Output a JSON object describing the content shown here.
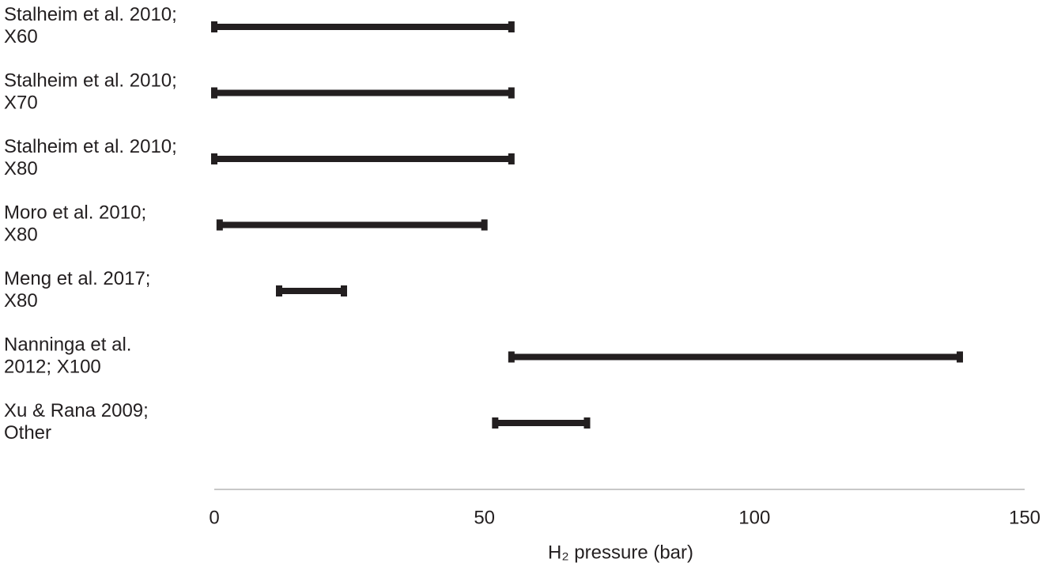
{
  "chart_data": {
    "type": "range",
    "categories": [
      [
        "Stalheim et al. 2010;",
        "X60"
      ],
      [
        "Stalheim et al. 2010;",
        "X70"
      ],
      [
        "Stalheim et al. 2010;",
        "X80"
      ],
      [
        "Moro et al. 2010;",
        "X80"
      ],
      [
        "Meng et al. 2017;",
        "X80"
      ],
      [
        "Nanninga et al.",
        "2012; X100"
      ],
      [
        "Xu & Rana 2009;",
        "Other"
      ]
    ],
    "start": [
      0,
      0,
      0,
      1,
      12,
      55,
      52
    ],
    "end": [
      55,
      55,
      55,
      50,
      24,
      138,
      69
    ],
    "color": "#231f20",
    "xlabel": "H₂ pressure (bar)",
    "xlim": [
      0,
      150
    ],
    "xticks": [
      0,
      50,
      100,
      150
    ]
  }
}
